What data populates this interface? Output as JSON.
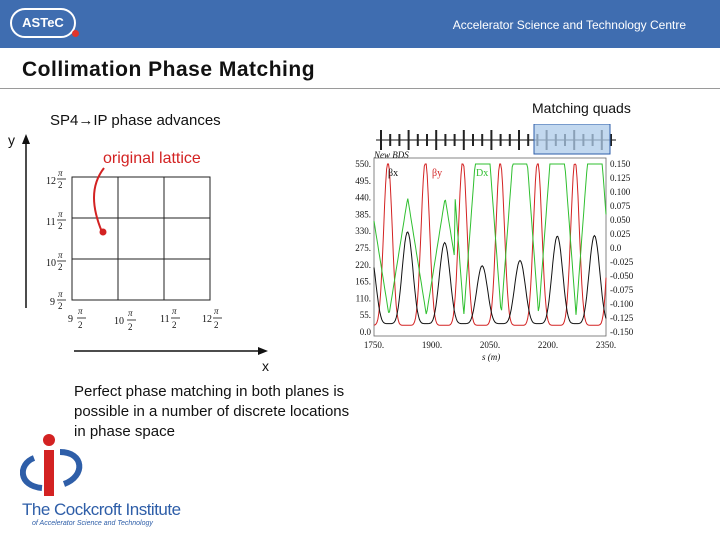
{
  "header": {
    "logo_text": "ASTeC",
    "organisation": "Accelerator Science and Technology Centre",
    "colors": {
      "bar": "#3f6db0",
      "logo_dot": "#e0342b"
    }
  },
  "slide": {
    "title": "Collimation Phase Matching"
  },
  "phase_diagram": {
    "label": "SP4→IP phase advances",
    "y_axis_label": "y",
    "x_axis_label": "x",
    "original_lattice_label": "original lattice",
    "tick_multipliers": [
      "9",
      "10",
      "11",
      "12"
    ],
    "tick_suffix": "π/2",
    "marker_color": "#d32222"
  },
  "beam_plot": {
    "matching_quads_label": "Matching quads",
    "legend_title": "New BDS",
    "legend": [
      {
        "label": "βx",
        "color": "#111111"
      },
      {
        "label": "βy",
        "color": "#d32222"
      },
      {
        "label": "Dx",
        "color": "#2fbf2f"
      }
    ],
    "x_axis_label": "s (m)",
    "x_ticks": [
      "1750.",
      "1900.",
      "2050.",
      "2200.",
      "2350."
    ],
    "left_ticks": [
      "550.",
      "495.",
      "440.",
      "385.",
      "330.",
      "275.",
      "220.",
      "165.",
      "110.",
      "55.",
      "0.0"
    ],
    "right_ticks": [
      "0.150",
      "0.125",
      "0.100",
      "0.075",
      "0.050",
      "0.025",
      "0.0",
      "-0.025",
      "-0.050",
      "-0.075",
      "-0.100",
      "-0.125",
      "-0.150"
    ]
  },
  "conclusion": {
    "text": "Perfect phase matching in both planes is possible in a number of discrete locations in phase space"
  },
  "institute": {
    "name": "The Cockcroft Institute",
    "subtitle": "of Accelerator Science and Technology",
    "colors": {
      "blue": "#2e5ea8",
      "red": "#d32222"
    }
  }
}
